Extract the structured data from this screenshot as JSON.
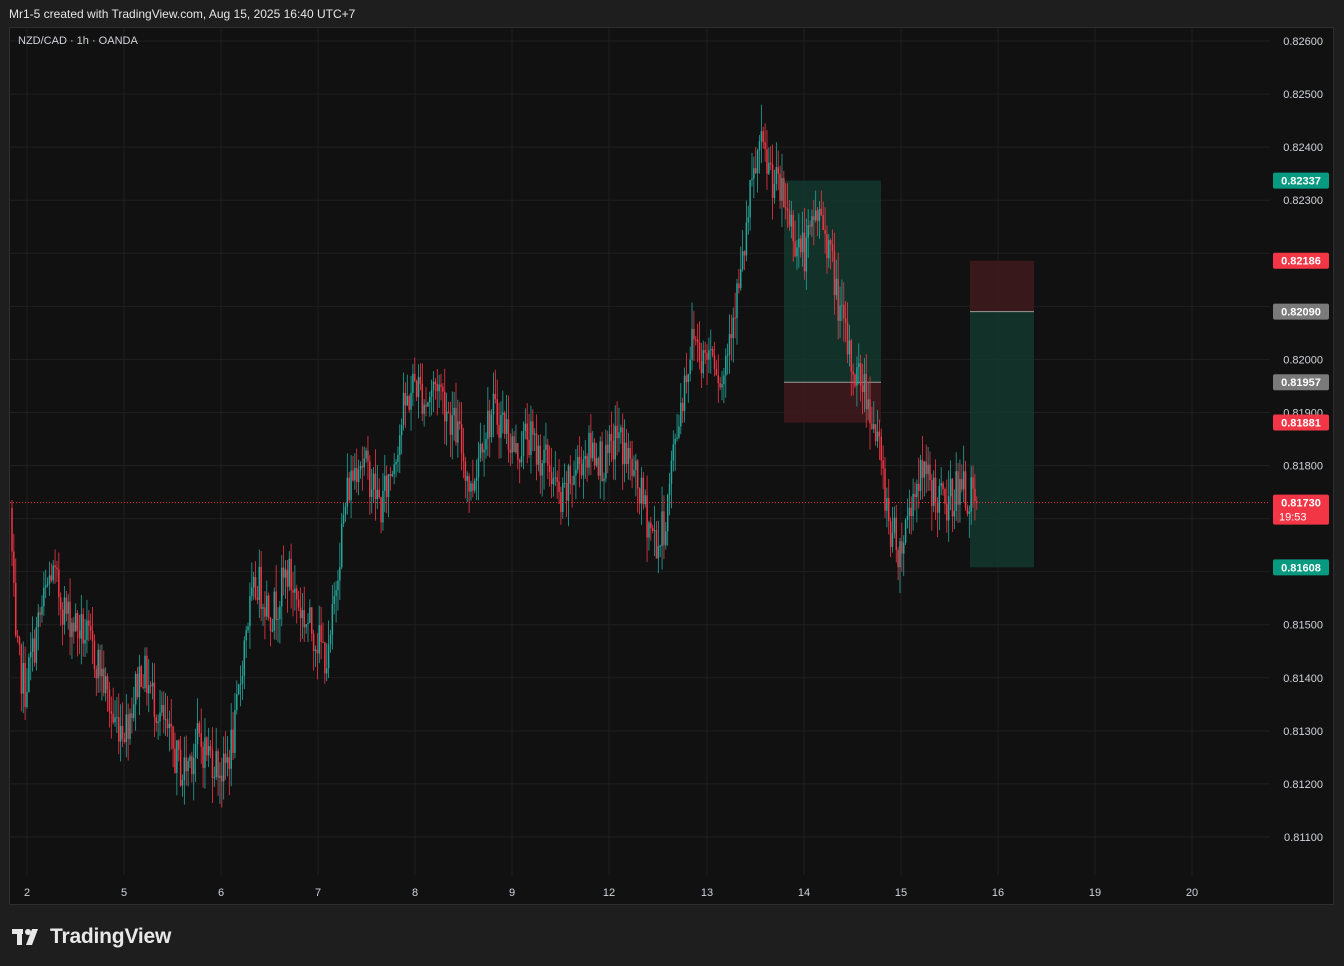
{
  "header": {
    "caption": "Mr1-5 created with TradingView.com, Aug 15, 2025 16:40 UTC+7"
  },
  "symbol": {
    "label": "NZD/CAD · 1h · OANDA"
  },
  "footer": {
    "brand": "TradingView",
    "logo_icon": "tradingview-logo-icon"
  },
  "colors": {
    "background": "#111111",
    "up": "#26a69a",
    "down": "#f23645",
    "grid": "#1f1f1f",
    "axis_text": "#d1d4dc",
    "last_price": "#f23645",
    "profit_zone": "#123a30",
    "loss_zone": "#3d1a1d"
  },
  "chart_data": {
    "type": "candlestick",
    "instrument": "NZD/CAD",
    "timeframe": "1h",
    "source": "OANDA",
    "x_tick_labels": [
      "2",
      "5",
      "6",
      "7",
      "8",
      "9",
      "12",
      "13",
      "14",
      "15",
      "16",
      "19",
      "20"
    ],
    "y_tick_labels": [
      "0.82600",
      "0.82500",
      "0.82400",
      "0.82300",
      "0.82000",
      "0.81900",
      "0.81800",
      "0.81500",
      "0.81400",
      "0.81300",
      "0.81200",
      "0.81100"
    ],
    "ylim": [
      0.8107,
      0.8262
    ],
    "grid": true,
    "anchors": [
      [
        0,
        0.8172
      ],
      [
        3,
        0.8145
      ],
      [
        8,
        0.8138
      ],
      [
        15,
        0.815
      ],
      [
        22,
        0.816
      ],
      [
        30,
        0.8152
      ],
      [
        40,
        0.8148
      ],
      [
        48,
        0.8142
      ],
      [
        55,
        0.8132
      ],
      [
        62,
        0.8131
      ],
      [
        70,
        0.8142
      ],
      [
        78,
        0.8135
      ],
      [
        85,
        0.8128
      ],
      [
        92,
        0.8122
      ],
      [
        100,
        0.8128
      ],
      [
        108,
        0.8125
      ],
      [
        114,
        0.8122
      ],
      [
        120,
        0.813
      ],
      [
        126,
        0.815
      ],
      [
        132,
        0.8158
      ],
      [
        140,
        0.8152
      ],
      [
        148,
        0.816
      ],
      [
        156,
        0.8152
      ],
      [
        163,
        0.8148
      ],
      [
        170,
        0.8143
      ],
      [
        175,
        0.8162
      ],
      [
        180,
        0.8175
      ],
      [
        186,
        0.8182
      ],
      [
        192,
        0.8178
      ],
      [
        198,
        0.8172
      ],
      [
        204,
        0.818
      ],
      [
        210,
        0.819
      ],
      [
        216,
        0.8196
      ],
      [
        222,
        0.8192
      ],
      [
        228,
        0.8196
      ],
      [
        234,
        0.819
      ],
      [
        240,
        0.8185
      ],
      [
        246,
        0.8175
      ],
      [
        252,
        0.8186
      ],
      [
        258,
        0.819
      ],
      [
        264,
        0.8188
      ],
      [
        270,
        0.8182
      ],
      [
        276,
        0.8186
      ],
      [
        282,
        0.8182
      ],
      [
        288,
        0.818
      ],
      [
        294,
        0.8172
      ],
      [
        300,
        0.8178
      ],
      [
        306,
        0.8182
      ],
      [
        312,
        0.8183
      ],
      [
        318,
        0.818
      ],
      [
        324,
        0.8186
      ],
      [
        330,
        0.8181
      ],
      [
        336,
        0.8175
      ],
      [
        342,
        0.8168
      ],
      [
        346,
        0.8165
      ],
      [
        350,
        0.817
      ],
      [
        355,
        0.8185
      ],
      [
        360,
        0.8196
      ],
      [
        365,
        0.8205
      ],
      [
        370,
        0.82
      ],
      [
        375,
        0.8203
      ],
      [
        380,
        0.8195
      ],
      [
        385,
        0.8208
      ],
      [
        390,
        0.8215
      ],
      [
        395,
        0.823
      ],
      [
        400,
        0.824
      ],
      [
        405,
        0.8236
      ],
      [
        410,
        0.8232
      ],
      [
        415,
        0.8228
      ],
      [
        420,
        0.8222
      ],
      [
        425,
        0.822
      ],
      [
        430,
        0.8228
      ],
      [
        435,
        0.8225
      ],
      [
        440,
        0.8215
      ],
      [
        445,
        0.8205
      ],
      [
        450,
        0.8198
      ],
      [
        455,
        0.8196
      ],
      [
        460,
        0.819
      ],
      [
        465,
        0.818
      ],
      [
        470,
        0.8168
      ],
      [
        475,
        0.8164
      ],
      [
        480,
        0.8172
      ],
      [
        485,
        0.8178
      ],
      [
        490,
        0.8177
      ],
      [
        495,
        0.8174
      ],
      [
        500,
        0.8172
      ],
      [
        505,
        0.8176
      ],
      [
        510,
        0.8175
      ],
      [
        515,
        0.8173
      ]
    ],
    "last_price": 0.8173,
    "countdown": "19:53",
    "price_labels": [
      {
        "value": 0.82337,
        "text": "0.82337",
        "kind": "target"
      },
      {
        "value": 0.82186,
        "text": "0.82186",
        "kind": "stop"
      },
      {
        "value": 0.8209,
        "text": "0.82090",
        "kind": "entry"
      },
      {
        "value": 0.81957,
        "text": "0.81957",
        "kind": "entry"
      },
      {
        "value": 0.81881,
        "text": "0.81881",
        "kind": "stop"
      },
      {
        "value": 0.8173,
        "text": "0.81730",
        "kind": "last"
      },
      {
        "value": 0.81608,
        "text": "0.81608",
        "kind": "target"
      }
    ],
    "positions": [
      {
        "direction": "long",
        "entry": 0.81957,
        "target": 0.82337,
        "stop": 0.81881
      },
      {
        "direction": "short",
        "entry": 0.8209,
        "target": 0.81608,
        "stop": 0.82186
      }
    ]
  }
}
